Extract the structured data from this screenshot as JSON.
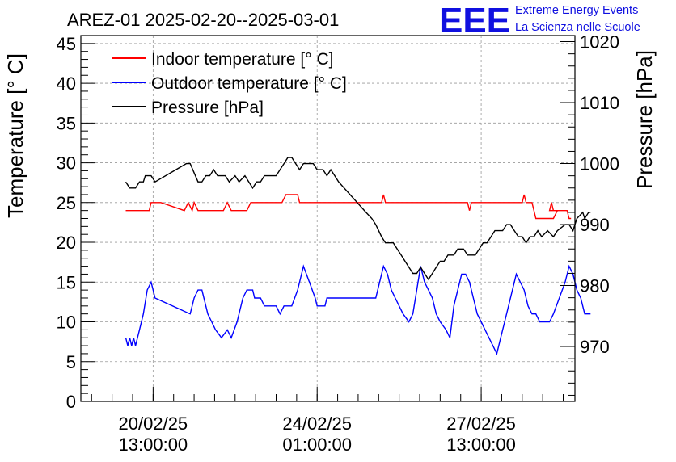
{
  "chart_data": {
    "type": "line",
    "title": "AREZ-01 2025-02-20--2025-03-01",
    "ylabel": "Temperature [° C]",
    "y2label": "Pressure [hPa]",
    "ylim": [
      0,
      46
    ],
    "y2lim": [
      961,
      1021
    ],
    "yticks": [
      "0",
      "5",
      "10",
      "15",
      "20",
      "25",
      "30",
      "35",
      "40",
      "45"
    ],
    "y2ticks": [
      "970",
      "980",
      "990",
      "1000",
      "1010",
      "1020"
    ],
    "xticks": [
      {
        "date": "20/02/25",
        "time": "13:00:00"
      },
      {
        "date": "24/02/25",
        "time": "01:00:00"
      },
      {
        "date": "27/02/25",
        "time": "13:00:00"
      }
    ],
    "xlim": [
      "2025-02-19T00:00",
      "2025-03-01T13:00"
    ],
    "grid": true,
    "legend_position": "top-left",
    "logo": {
      "text": "EEE",
      "line1": "Extreme Energy Events",
      "line2": "La Scienza nelle Scuole",
      "color": "#1010e0"
    },
    "series": [
      {
        "name": "Indoor temperature [° C]",
        "color": "#ff0000",
        "axis": "left",
        "points": [
          [
            "2025-02-19T23:00",
            24
          ],
          [
            "2025-02-20T11:00",
            24
          ],
          [
            "2025-02-20T12:00",
            25
          ],
          [
            "2025-02-20T17:00",
            25
          ],
          [
            "2025-02-21T05:00",
            24
          ],
          [
            "2025-02-21T07:00",
            25
          ],
          [
            "2025-02-21T09:00",
            24
          ],
          [
            "2025-02-21T10:00",
            25
          ],
          [
            "2025-02-21T12:00",
            24
          ],
          [
            "2025-02-22T01:00",
            24
          ],
          [
            "2025-02-22T03:00",
            25
          ],
          [
            "2025-02-22T05:00",
            24
          ],
          [
            "2025-02-22T13:00",
            24
          ],
          [
            "2025-02-22T15:00",
            25
          ],
          [
            "2025-02-23T07:00",
            25
          ],
          [
            "2025-02-23T09:00",
            26
          ],
          [
            "2025-02-23T15:00",
            26
          ],
          [
            "2025-02-23T16:00",
            25
          ],
          [
            "2025-02-25T10:00",
            25
          ],
          [
            "2025-02-25T11:00",
            26
          ],
          [
            "2025-02-25T12:00",
            25
          ],
          [
            "2025-02-27T06:00",
            25
          ],
          [
            "2025-02-27T07:00",
            24
          ],
          [
            "2025-02-27T08:00",
            25
          ],
          [
            "2025-02-28T10:00",
            25
          ],
          [
            "2025-02-28T11:00",
            26
          ],
          [
            "2025-02-28T12:00",
            25
          ],
          [
            "2025-02-28T15:00",
            25
          ],
          [
            "2025-02-28T17:00",
            23
          ],
          [
            "2025-02-29T02:00",
            23
          ],
          [
            "2025-02-29T04:00",
            24
          ],
          [
            "2025-03-01T00:00",
            24
          ],
          [
            "2025-03-01T01:00",
            25
          ],
          [
            "2025-03-01T02:00",
            24
          ],
          [
            "2025-03-01T09:00",
            24
          ],
          [
            "2025-03-01T10:00",
            23
          ],
          [
            "2025-03-01T11:00",
            23
          ]
        ]
      },
      {
        "name": "Outdoor temperature [° C]",
        "color": "#0000ff",
        "axis": "left",
        "points": [
          [
            "2025-02-19T23:00",
            8
          ],
          [
            "2025-02-20T00:00",
            7
          ],
          [
            "2025-02-20T01:00",
            8
          ],
          [
            "2025-02-20T02:00",
            7
          ],
          [
            "2025-02-20T03:00",
            8
          ],
          [
            "2025-02-20T04:00",
            7
          ],
          [
            "2025-02-20T06:00",
            9
          ],
          [
            "2025-02-20T08:00",
            11
          ],
          [
            "2025-02-20T10:00",
            14
          ],
          [
            "2025-02-20T12:00",
            15
          ],
          [
            "2025-02-20T14:00",
            13
          ],
          [
            "2025-02-21T08:00",
            11
          ],
          [
            "2025-02-21T10:00",
            13
          ],
          [
            "2025-02-21T12:00",
            14
          ],
          [
            "2025-02-21T14:00",
            14
          ],
          [
            "2025-02-21T17:00",
            11
          ],
          [
            "2025-02-21T19:00",
            10
          ],
          [
            "2025-02-21T21:00",
            9
          ],
          [
            "2025-02-22T00:00",
            8
          ],
          [
            "2025-02-22T03:00",
            9
          ],
          [
            "2025-02-22T05:00",
            8
          ],
          [
            "2025-02-22T08:00",
            10
          ],
          [
            "2025-02-22T11:00",
            13
          ],
          [
            "2025-02-22T13:00",
            14
          ],
          [
            "2025-02-22T16:00",
            14
          ],
          [
            "2025-02-22T17:00",
            13
          ],
          [
            "2025-02-22T20:00",
            13
          ],
          [
            "2025-02-22T22:00",
            12
          ],
          [
            "2025-02-23T04:00",
            12
          ],
          [
            "2025-02-23T06:00",
            11
          ],
          [
            "2025-02-23T08:00",
            12
          ],
          [
            "2025-02-23T12:00",
            12
          ],
          [
            "2025-02-23T15:00",
            14
          ],
          [
            "2025-02-23T18:00",
            17
          ],
          [
            "2025-02-23T21:00",
            15
          ],
          [
            "2025-02-24T00:00",
            13
          ],
          [
            "2025-02-24T01:00",
            12
          ],
          [
            "2025-02-24T05:00",
            12
          ],
          [
            "2025-02-24T06:00",
            13
          ],
          [
            "2025-02-25T07:00",
            13
          ],
          [
            "2025-02-25T09:00",
            15
          ],
          [
            "2025-02-25T11:00",
            17
          ],
          [
            "2025-02-25T13:00",
            16
          ],
          [
            "2025-02-25T15:00",
            14
          ],
          [
            "2025-02-25T17:00",
            13
          ],
          [
            "2025-02-25T19:00",
            12
          ],
          [
            "2025-02-25T21:00",
            11
          ],
          [
            "2025-02-26T00:00",
            10
          ],
          [
            "2025-02-26T02:00",
            11
          ],
          [
            "2025-02-26T04:00",
            14
          ],
          [
            "2025-02-26T06:00",
            17
          ],
          [
            "2025-02-26T08:00",
            15
          ],
          [
            "2025-02-26T10:00",
            14
          ],
          [
            "2025-02-26T12:00",
            13
          ],
          [
            "2025-02-26T14:00",
            11
          ],
          [
            "2025-02-26T16:00",
            10
          ],
          [
            "2025-02-26T19:00",
            9
          ],
          [
            "2025-02-26T21:00",
            8
          ],
          [
            "2025-02-26T23:00",
            12
          ],
          [
            "2025-02-27T01:00",
            14
          ],
          [
            "2025-02-27T03:00",
            16
          ],
          [
            "2025-02-27T05:00",
            16
          ],
          [
            "2025-02-27T07:00",
            15
          ],
          [
            "2025-02-27T09:00",
            13
          ],
          [
            "2025-02-27T11:00",
            11
          ],
          [
            "2025-02-27T13:00",
            10
          ],
          [
            "2025-02-27T15:00",
            9
          ],
          [
            "2025-02-27T17:00",
            8
          ],
          [
            "2025-02-27T19:00",
            7
          ],
          [
            "2025-02-27T21:00",
            6
          ],
          [
            "2025-02-27T23:00",
            8
          ],
          [
            "2025-02-28T01:00",
            10
          ],
          [
            "2025-02-28T03:00",
            12
          ],
          [
            "2025-02-28T05:00",
            14
          ],
          [
            "2025-02-28T07:00",
            16
          ],
          [
            "2025-02-28T09:00",
            15
          ],
          [
            "2025-02-28T11:00",
            14
          ],
          [
            "2025-02-28T13:00",
            12
          ],
          [
            "2025-02-28T15:00",
            11
          ],
          [
            "2025-02-28T17:00",
            11
          ],
          [
            "2025-02-28T19:00",
            10
          ],
          [
            "2025-02-29T00:00",
            10
          ],
          [
            "2025-02-29T02:00",
            11
          ],
          [
            "2025-02-29T05:00",
            13
          ],
          [
            "2025-02-29T08:00",
            15
          ],
          [
            "2025-02-29T10:00",
            17
          ],
          [
            "2025-02-29T12:00",
            16
          ],
          [
            "2025-02-29T14:00",
            14
          ],
          [
            "2025-02-29T16:00",
            13
          ],
          [
            "2025-02-29T18:00",
            11
          ],
          [
            "2025-02-29T21:00",
            11
          ]
        ]
      },
      {
        "name": "Pressure [hPa]",
        "color": "#000000",
        "axis": "right",
        "points": [
          [
            "2025-02-19T23:00",
            997
          ],
          [
            "2025-02-20T01:00",
            996
          ],
          [
            "2025-02-20T04:00",
            996
          ],
          [
            "2025-02-20T06:00",
            997
          ],
          [
            "2025-02-20T08:00",
            997
          ],
          [
            "2025-02-20T09:00",
            998
          ],
          [
            "2025-02-20T12:00",
            998
          ],
          [
            "2025-02-20T14:00",
            997
          ],
          [
            "2025-02-21T06:00",
            1000
          ],
          [
            "2025-02-21T08:00",
            1000
          ],
          [
            "2025-02-21T12:00",
            997
          ],
          [
            "2025-02-21T14:00",
            997
          ],
          [
            "2025-02-21T16:00",
            998
          ],
          [
            "2025-02-21T18:00",
            998
          ],
          [
            "2025-02-21T20:00",
            999
          ],
          [
            "2025-02-21T22:00",
            998
          ],
          [
            "2025-02-22T02:00",
            998
          ],
          [
            "2025-02-22T04:00",
            997
          ],
          [
            "2025-02-22T07:00",
            998
          ],
          [
            "2025-02-22T09:00",
            997
          ],
          [
            "2025-02-22T12:00",
            998
          ],
          [
            "2025-02-22T14:00",
            997
          ],
          [
            "2025-02-22T16:00",
            996
          ],
          [
            "2025-02-22T18:00",
            997
          ],
          [
            "2025-02-22T20:00",
            997
          ],
          [
            "2025-02-22T22:00",
            998
          ],
          [
            "2025-02-23T01:00",
            998
          ],
          [
            "2025-02-23T04:00",
            998
          ],
          [
            "2025-02-23T06:00",
            999
          ],
          [
            "2025-02-23T08:00",
            1000
          ],
          [
            "2025-02-23T10:00",
            1001
          ],
          [
            "2025-02-23T12:00",
            1001
          ],
          [
            "2025-02-23T14:00",
            1000
          ],
          [
            "2025-02-23T16:00",
            999
          ],
          [
            "2025-02-23T18:00",
            1000
          ],
          [
            "2025-02-23T20:00",
            1000
          ],
          [
            "2025-02-23T23:00",
            1000
          ],
          [
            "2025-02-24T01:00",
            999
          ],
          [
            "2025-02-24T04:00",
            999
          ],
          [
            "2025-02-24T06:00",
            998
          ],
          [
            "2025-02-24T08:00",
            999
          ],
          [
            "2025-02-24T10:00",
            998
          ],
          [
            "2025-02-24T12:00",
            997
          ],
          [
            "2025-02-25T02:00",
            992
          ],
          [
            "2025-02-25T05:00",
            991
          ],
          [
            "2025-02-25T07:00",
            990
          ],
          [
            "2025-02-25T10:00",
            988
          ],
          [
            "2025-02-25T12:00",
            987
          ],
          [
            "2025-02-25T16:00",
            987
          ],
          [
            "2025-02-25T18:00",
            986
          ],
          [
            "2025-02-25T20:00",
            985
          ],
          [
            "2025-02-25T22:00",
            984
          ],
          [
            "2025-02-26T00:00",
            983
          ],
          [
            "2025-02-26T02:00",
            982
          ],
          [
            "2025-02-26T04:00",
            982
          ],
          [
            "2025-02-26T06:00",
            983
          ],
          [
            "2025-02-26T08:00",
            982
          ],
          [
            "2025-02-26T10:00",
            981
          ],
          [
            "2025-02-26T12:00",
            982
          ],
          [
            "2025-02-26T14:00",
            983
          ],
          [
            "2025-02-26T16:00",
            984
          ],
          [
            "2025-02-26T18:00",
            984
          ],
          [
            "2025-02-26T20:00",
            985
          ],
          [
            "2025-02-26T23:00",
            985
          ],
          [
            "2025-02-27T01:00",
            986
          ],
          [
            "2025-02-27T04:00",
            986
          ],
          [
            "2025-02-27T06:00",
            985
          ],
          [
            "2025-02-27T10:00",
            985
          ],
          [
            "2025-02-27T12:00",
            986
          ],
          [
            "2025-02-27T14:00",
            987
          ],
          [
            "2025-02-27T16:00",
            987
          ],
          [
            "2025-02-27T18:00",
            988
          ],
          [
            "2025-02-27T20:00",
            989
          ],
          [
            "2025-02-28T00:00",
            989
          ],
          [
            "2025-02-28T02:00",
            990
          ],
          [
            "2025-02-28T04:00",
            990
          ],
          [
            "2025-02-28T06:00",
            989
          ],
          [
            "2025-02-28T08:00",
            988
          ],
          [
            "2025-02-28T10:00",
            988
          ],
          [
            "2025-02-28T12:00",
            987
          ],
          [
            "2025-02-28T14:00",
            988
          ],
          [
            "2025-02-28T16:00",
            988
          ],
          [
            "2025-02-28T18:00",
            989
          ],
          [
            "2025-02-28T20:00",
            988
          ],
          [
            "2025-02-28T23:00",
            989
          ],
          [
            "2025-02-29T02:00",
            988
          ],
          [
            "2025-02-29T04:00",
            989
          ],
          [
            "2025-02-29T08:00",
            990
          ],
          [
            "2025-02-29T10:00",
            990
          ],
          [
            "2025-02-29T12:00",
            989
          ],
          [
            "2025-02-29T14:00",
            991
          ],
          [
            "2025-02-29T17:00",
            992
          ],
          [
            "2025-02-29T18:00",
            991
          ],
          [
            "2025-02-29T20:00",
            992
          ],
          [
            "2025-02-29T21:00",
            992
          ]
        ]
      }
    ]
  }
}
